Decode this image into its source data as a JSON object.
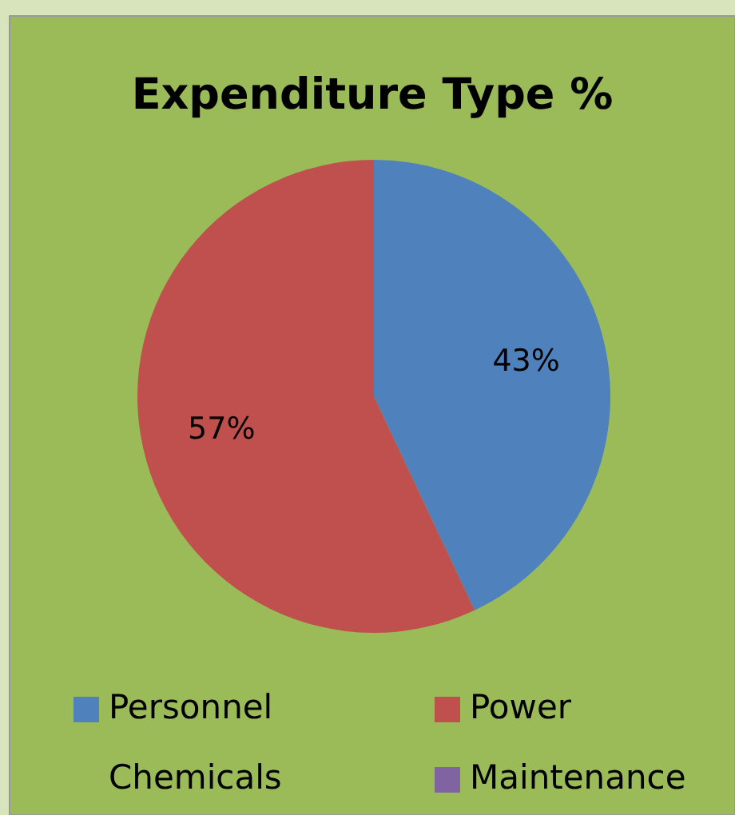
{
  "chart_data": {
    "type": "pie",
    "title": "Expenditure Type %",
    "categories": [
      "Personnel",
      "Power",
      "Chemicals",
      "Maintenance"
    ],
    "values": [
      43,
      57,
      0,
      0
    ],
    "colors": [
      "#4f81bd",
      "#c0504d",
      "#9bbb59",
      "#8064a2"
    ],
    "value_labels": [
      "43%",
      "57%",
      null,
      null
    ],
    "legend": "bottom"
  }
}
